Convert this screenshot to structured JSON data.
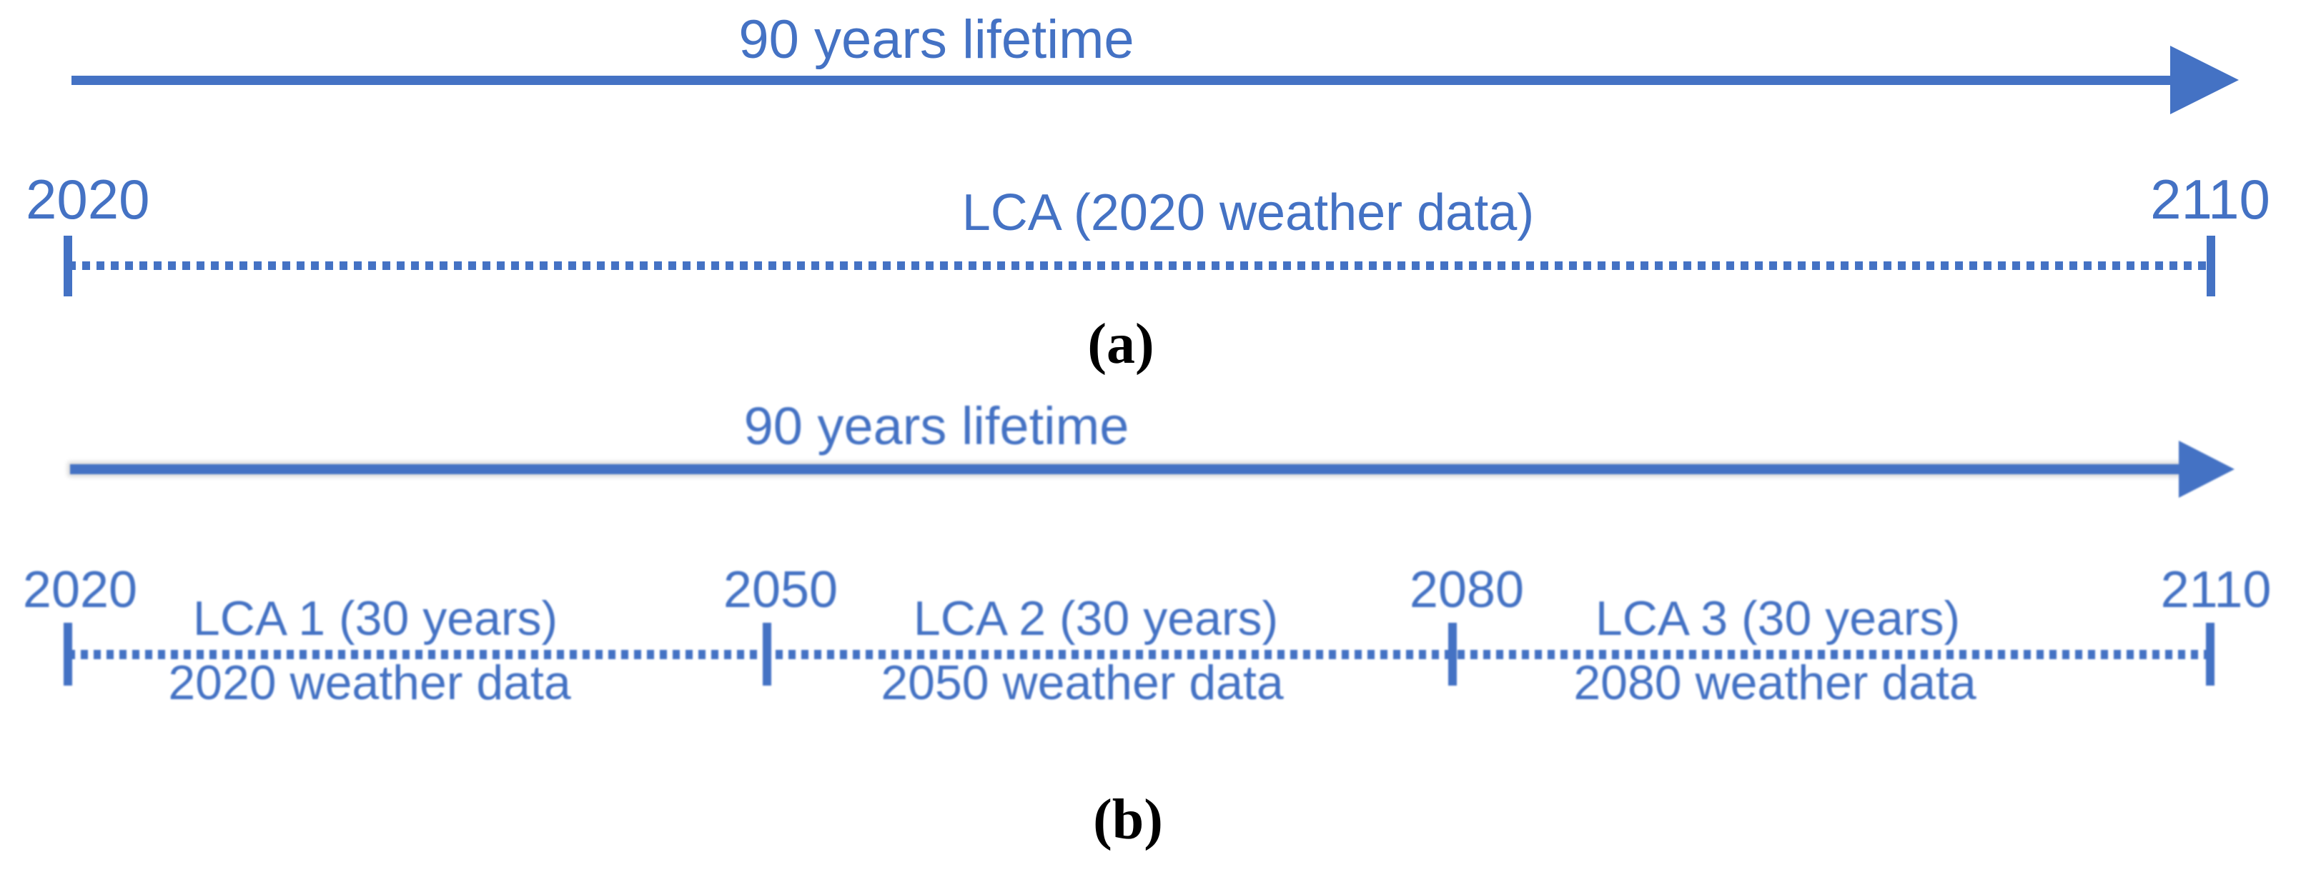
{
  "colors": {
    "accent": "#4472C4",
    "caption_color": "#000000"
  },
  "section_a": {
    "lifetime_label": "90 years lifetime",
    "timeline": {
      "start_year": "2020",
      "end_year": "2110",
      "span_label": "LCA (2020 weather data)"
    },
    "caption": "(a)"
  },
  "section_b": {
    "lifetime_label": "90 years lifetime",
    "timeline": {
      "years": [
        "2020",
        "2050",
        "2080",
        "2110"
      ],
      "segments": [
        {
          "title": "LCA 1 (30 years)",
          "subtitle": "2020 weather data"
        },
        {
          "title": "LCA 2 (30 years)",
          "subtitle": "2050 weather data"
        },
        {
          "title": "LCA 3 (30 years)",
          "subtitle": "2080 weather data"
        }
      ]
    },
    "caption": "(b)"
  }
}
